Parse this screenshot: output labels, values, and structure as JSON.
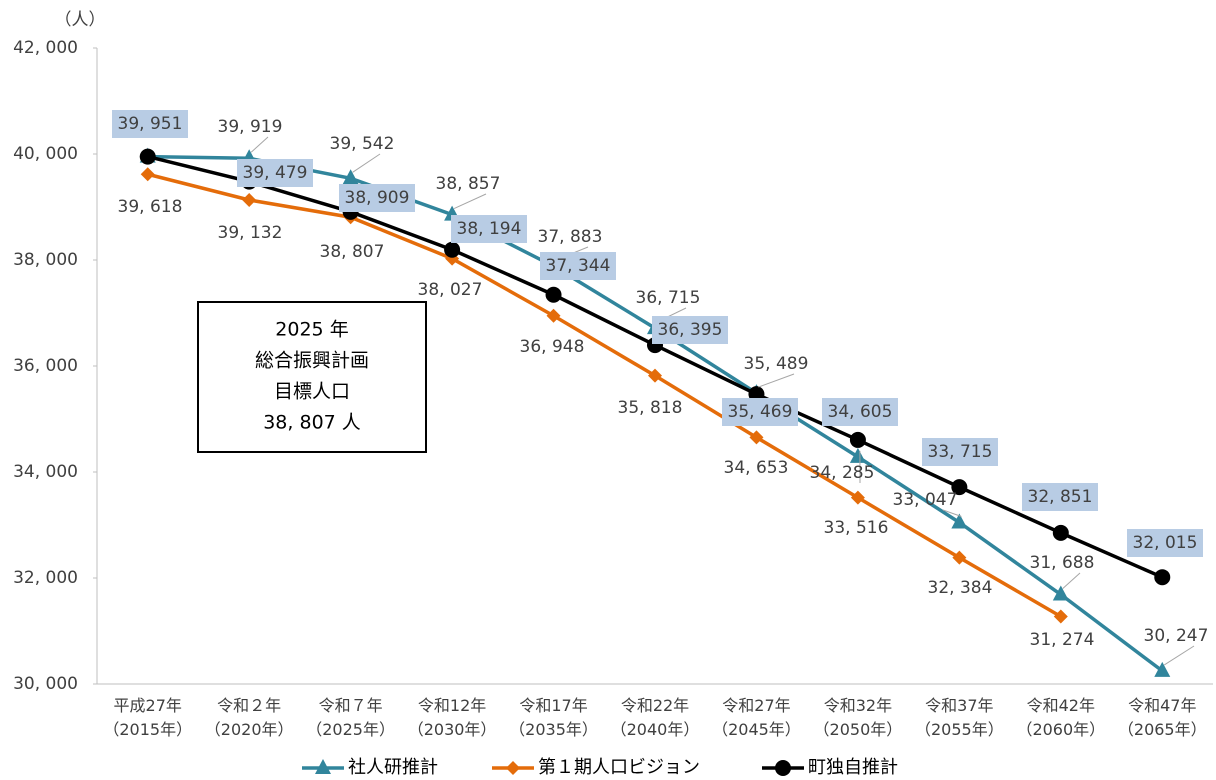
{
  "chart_data": {
    "type": "line",
    "y_unit": "（人）",
    "categories": [
      "平成27年\n（2015年）",
      "令和２年\n（2020年）",
      "令和７年\n（2025年）",
      "令和12年\n（2030年）",
      "令和17年\n（2035年）",
      "令和22年\n（2040年）",
      "令和27年\n（2045年）",
      "令和32年\n（2050年）",
      "令和37年\n（2055年）",
      "令和42年\n（2060年）",
      "令和47年\n（2065年）"
    ],
    "ylim": [
      30000,
      42000
    ],
    "yticks": [
      {
        "value": 30000,
        "label": "30, 000"
      },
      {
        "value": 32000,
        "label": "32, 000"
      },
      {
        "value": 34000,
        "label": "34, 000"
      },
      {
        "value": 36000,
        "label": "36, 000"
      },
      {
        "value": 38000,
        "label": "38, 000"
      },
      {
        "value": 40000,
        "label": "40, 000"
      },
      {
        "value": 42000,
        "label": "42, 000"
      }
    ],
    "grid": false,
    "legend": "bottom",
    "series": [
      {
        "name": "社人研推計",
        "color": "#31859c",
        "marker": "triangle",
        "values": [
          39951,
          39919,
          39542,
          38857,
          37883,
          36715,
          35489,
          34285,
          33047,
          31688,
          30247
        ],
        "value_labels": [
          null,
          "39, 919",
          "39, 542",
          "38, 857",
          "37, 883",
          "36, 715",
          "35, 489",
          "34, 285",
          "33, 047",
          "31, 688",
          "30, 247"
        ]
      },
      {
        "name": "第１期人口ビジョン",
        "color": "#e46c0a",
        "marker": "diamond",
        "values": [
          39618,
          39132,
          38807,
          38027,
          36948,
          35818,
          34653,
          33516,
          32384,
          31274,
          null
        ],
        "value_labels": [
          "39, 618",
          "39, 132",
          "38, 807",
          "38, 027",
          "36, 948",
          "35, 818",
          "34, 653",
          "33, 516",
          "32, 384",
          "31, 274",
          null
        ]
      },
      {
        "name": "町独自推計",
        "color": "#000000",
        "marker": "circle",
        "values": [
          39951,
          39479,
          38909,
          38194,
          37344,
          36395,
          35469,
          34605,
          33715,
          32851,
          32015
        ],
        "value_labels": [
          "39, 951",
          "39, 479",
          "38, 909",
          "38, 194",
          "37, 344",
          "36, 395",
          "35, 469",
          "34, 605",
          "33, 715",
          "32, 851",
          "32, 015"
        ]
      }
    ],
    "annotation": [
      "2025 年",
      "総合振興計画",
      "目標人口",
      "38, 807 人"
    ]
  }
}
